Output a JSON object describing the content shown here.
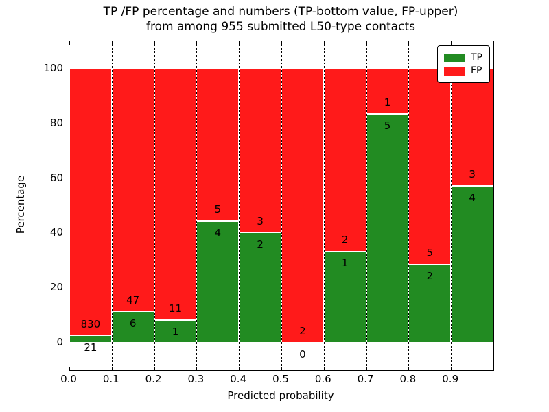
{
  "chart_data": {
    "type": "bar",
    "stacked": true,
    "title_line1": "TP /FP percentage and numbers (TP-bottom value, FP-upper)",
    "title_line2": "from among 955 submitted L50-type contacts",
    "xlabel": "Predicted probability",
    "ylabel": "Percentage",
    "total_contacts": 955,
    "xlim": [
      0.0,
      1.0
    ],
    "ylim": [
      -10,
      110
    ],
    "grid": "dotted",
    "x_tick_labels": [
      "0.0",
      "0.1",
      "0.2",
      "0.3",
      "0.4",
      "0.5",
      "0.6",
      "0.7",
      "0.8",
      "0.9"
    ],
    "y_tick_labels": [
      "0",
      "20",
      "40",
      "60",
      "80",
      "100"
    ],
    "y_tick_values": [
      0,
      20,
      40,
      60,
      80,
      100
    ],
    "tp_color": "#228b22",
    "fp_color": "#ff1a1a",
    "legend": {
      "position": "upper right",
      "entries": [
        {
          "label": "TP",
          "color": "#228b22"
        },
        {
          "label": "FP",
          "color": "#ff1a1a"
        }
      ]
    },
    "bins": [
      {
        "range": "0.0-0.1",
        "tp": 21,
        "fp": 830,
        "tp_percent": 2.47
      },
      {
        "range": "0.1-0.2",
        "tp": 6,
        "fp": 47,
        "tp_percent": 11.32
      },
      {
        "range": "0.2-0.3",
        "tp": 1,
        "fp": 11,
        "tp_percent": 8.33
      },
      {
        "range": "0.3-0.4",
        "tp": 4,
        "fp": 5,
        "tp_percent": 44.44
      },
      {
        "range": "0.4-0.5",
        "tp": 2,
        "fp": 3,
        "tp_percent": 40.0
      },
      {
        "range": "0.5-0.6",
        "tp": 0,
        "fp": 2,
        "tp_percent": 0.0
      },
      {
        "range": "0.6-0.7",
        "tp": 1,
        "fp": 2,
        "tp_percent": 33.33
      },
      {
        "range": "0.7-0.8",
        "tp": 5,
        "fp": 1,
        "tp_percent": 83.33
      },
      {
        "range": "0.8-0.9",
        "tp": 2,
        "fp": 5,
        "tp_percent": 28.57
      },
      {
        "range": "0.9-1.0",
        "tp": 4,
        "fp": 3,
        "tp_percent": 57.14
      }
    ]
  }
}
